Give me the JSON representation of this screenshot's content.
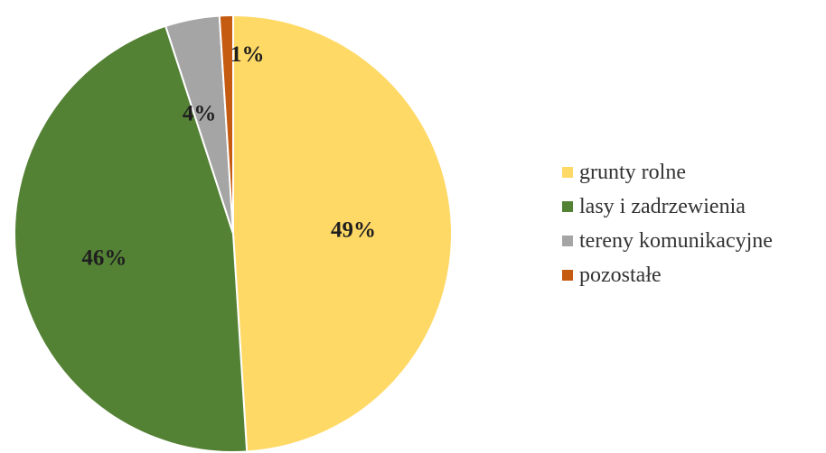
{
  "chart_data": {
    "type": "pie",
    "categories": [
      "grunty rolne",
      "lasy i zadrzewienia",
      "tereny komunikacyjne",
      "pozostałe"
    ],
    "values": [
      49,
      46,
      4,
      1
    ],
    "labels": [
      "49%",
      "46%",
      "4%",
      "1%"
    ],
    "colors": [
      "#FFD966",
      "#548235",
      "#A5A5A5",
      "#C55A11"
    ],
    "legend": "right",
    "start_angle_deg": 0,
    "direction": "clockwise"
  }
}
